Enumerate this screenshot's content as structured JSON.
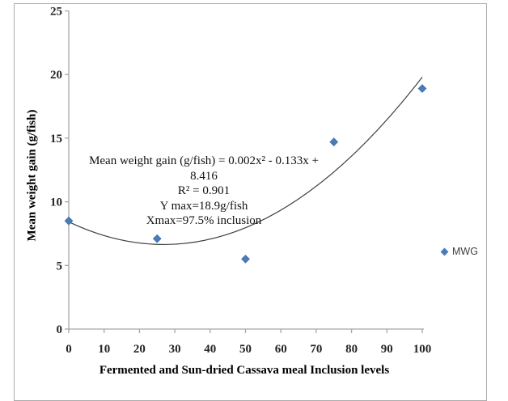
{
  "chart_data": {
    "type": "scatter",
    "xlabel": "Fermented and Sun-dried Cassava meal Inclusion levels",
    "ylabel": "Mean weight gain (g/fish)",
    "xlim": [
      0,
      100
    ],
    "ylim": [
      0,
      25
    ],
    "x_ticks": [
      0,
      10,
      20,
      30,
      40,
      50,
      60,
      70,
      80,
      90,
      100
    ],
    "y_ticks": [
      0,
      5,
      10,
      15,
      20,
      25
    ],
    "grid": false,
    "series": [
      {
        "name": "MWG",
        "marker": "diamond",
        "x": [
          0,
          25,
          50,
          75,
          100
        ],
        "y": [
          8.5,
          7.1,
          5.5,
          14.7,
          18.9
        ]
      }
    ],
    "trendline": {
      "type": "polynomial-order-2",
      "equation": "Mean weight gain (g/fish) = 0.002x² - 0.133x + 8.416",
      "r_squared": 0.901,
      "curve_points": [
        [
          0,
          8.42
        ],
        [
          50,
          7.96
        ],
        [
          100,
          19.8
        ]
      ]
    },
    "annotation": {
      "lines": [
        "Mean weight gain (g/fish) = 0.002x² - 0.133x + 8.416",
        "R² = 0.901",
        "Y max=18.9g/fish",
        "Xmax=97.5% inclusion"
      ]
    },
    "legend": {
      "label": "MWG",
      "position": "right"
    }
  },
  "colors": {
    "marker": "#4a7cbb",
    "marker_edge": "#3a6ba8",
    "trendline": "#404040",
    "axis": "#a6a6a6",
    "tick_label": "#262626",
    "border": "#ababab"
  }
}
